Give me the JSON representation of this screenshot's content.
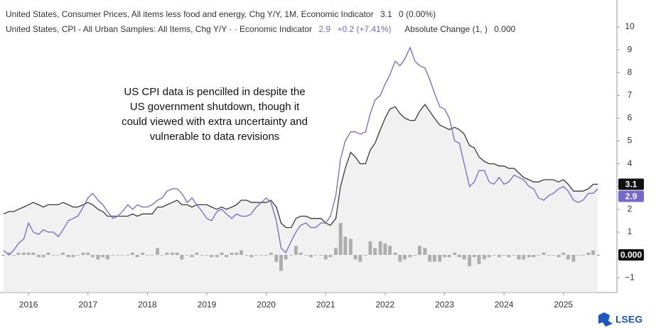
{
  "chart_data": {
    "type": "line",
    "annotation": [
      "US CPI data is pencilled in despite the",
      "US government shutdown, though it",
      "could viewed with extra uncertainty and",
      "vulnerable to data revisions"
    ],
    "logo": "LSEG",
    "x": [
      2015.58,
      2015.67,
      2015.75,
      2015.83,
      2015.92,
      2016,
      2016.08,
      2016.17,
      2016.25,
      2016.33,
      2016.42,
      2016.5,
      2016.58,
      2016.67,
      2016.75,
      2016.83,
      2016.92,
      2017,
      2017.08,
      2017.17,
      2017.25,
      2017.33,
      2017.42,
      2017.5,
      2017.58,
      2017.67,
      2017.75,
      2017.83,
      2017.92,
      2018,
      2018.08,
      2018.17,
      2018.25,
      2018.33,
      2018.42,
      2018.5,
      2018.58,
      2018.67,
      2018.75,
      2018.83,
      2018.92,
      2019,
      2019.08,
      2019.17,
      2019.25,
      2019.33,
      2019.42,
      2019.5,
      2019.58,
      2019.67,
      2019.75,
      2019.83,
      2019.92,
      2020,
      2020.08,
      2020.17,
      2020.25,
      2020.33,
      2020.42,
      2020.5,
      2020.58,
      2020.67,
      2020.75,
      2020.83,
      2020.92,
      2021,
      2021.08,
      2021.17,
      2021.25,
      2021.33,
      2021.42,
      2021.5,
      2021.58,
      2021.67,
      2021.75,
      2021.83,
      2021.92,
      2022,
      2022.08,
      2022.17,
      2022.25,
      2022.33,
      2022.42,
      2022.5,
      2022.58,
      2022.67,
      2022.75,
      2022.83,
      2022.92,
      2023,
      2023.08,
      2023.17,
      2023.25,
      2023.33,
      2023.42,
      2023.5,
      2023.58,
      2023.67,
      2023.75,
      2023.83,
      2023.92,
      2024,
      2024.08,
      2024.17,
      2024.25,
      2024.33,
      2024.42,
      2024.5,
      2024.58,
      2024.67,
      2024.75,
      2024.83,
      2024.92,
      2025,
      2025.08,
      2025.17,
      2025.25,
      2025.33,
      2025.42,
      2025.5,
      2025.58
    ],
    "series": [
      {
        "name": "United States, Consumer Prices, All items less food and energy, Chg Y/Y, 1M, Economic Indicator",
        "type": "line",
        "color": "#3a3a3a",
        "area": true,
        "last_label": "3.1",
        "change_label": "0 (0.00%)",
        "values": [
          1.8,
          1.9,
          1.9,
          2.0,
          2.1,
          2.2,
          2.3,
          2.2,
          2.1,
          2.2,
          2.2,
          2.2,
          2.3,
          2.2,
          2.1,
          2.1,
          2.2,
          2.3,
          2.2,
          2.0,
          1.9,
          1.7,
          1.7,
          1.7,
          1.7,
          1.7,
          1.8,
          1.7,
          1.8,
          1.8,
          1.8,
          2.1,
          2.1,
          2.2,
          2.3,
          2.4,
          2.2,
          2.2,
          2.1,
          2.2,
          2.2,
          2.2,
          2.1,
          2.0,
          2.1,
          2.0,
          2.1,
          2.2,
          2.4,
          2.4,
          2.3,
          2.3,
          2.3,
          2.3,
          2.4,
          2.1,
          1.4,
          1.2,
          1.2,
          1.6,
          1.7,
          1.7,
          1.6,
          1.6,
          1.6,
          1.4,
          1.3,
          1.6,
          3.0,
          3.8,
          4.5,
          4.3,
          4.0,
          4.0,
          4.6,
          4.9,
          5.5,
          6.0,
          6.4,
          6.5,
          6.2,
          6.0,
          5.9,
          5.9,
          6.3,
          6.6,
          6.3,
          6.0,
          5.7,
          5.6,
          5.5,
          5.6,
          5.5,
          5.3,
          4.8,
          4.7,
          4.3,
          4.1,
          4.0,
          4.0,
          3.9,
          3.9,
          3.8,
          3.8,
          3.6,
          3.4,
          3.3,
          3.2,
          3.2,
          3.3,
          3.3,
          3.3,
          3.2,
          3.3,
          3.1,
          2.8,
          2.8,
          2.8,
          2.9,
          3.1,
          3.1
        ]
      },
      {
        "name": "United States, CPI - All Urban Samples: All Items, Chg Y/Y · · Economic Indicator",
        "type": "line",
        "color": "#7468cc",
        "last_label": "2.9",
        "change_label": "+0.2 (+7.41%)",
        "values": [
          0.2,
          0.0,
          0.2,
          0.5,
          0.7,
          1.4,
          1.0,
          0.9,
          1.1,
          1.0,
          1.0,
          0.8,
          1.1,
          1.5,
          1.6,
          1.7,
          2.1,
          2.5,
          2.7,
          2.4,
          2.2,
          1.9,
          1.6,
          1.7,
          1.9,
          2.2,
          2.0,
          2.2,
          2.1,
          2.1,
          2.2,
          2.4,
          2.5,
          2.8,
          2.9,
          2.9,
          2.7,
          2.3,
          2.5,
          2.2,
          1.9,
          1.6,
          1.5,
          1.9,
          2.0,
          1.8,
          1.6,
          1.8,
          1.7,
          1.7,
          1.8,
          2.1,
          2.3,
          2.5,
          2.3,
          1.5,
          0.3,
          0.1,
          0.6,
          1.0,
          1.3,
          1.4,
          1.2,
          1.2,
          1.4,
          1.4,
          1.7,
          2.6,
          4.2,
          5.0,
          5.4,
          5.4,
          5.3,
          5.4,
          6.2,
          6.8,
          7.0,
          7.5,
          7.9,
          8.5,
          8.3,
          8.6,
          9.1,
          8.5,
          8.3,
          8.2,
          7.7,
          7.1,
          6.5,
          6.4,
          6.0,
          5.0,
          4.9,
          4.0,
          3.0,
          3.2,
          3.7,
          3.7,
          3.2,
          3.1,
          3.4,
          3.1,
          3.2,
          3.5,
          3.4,
          3.3,
          3.0,
          2.9,
          2.5,
          2.4,
          2.6,
          2.7,
          2.9,
          3.0,
          2.8,
          2.4,
          2.3,
          2.4,
          2.7,
          2.7,
          2.9
        ]
      },
      {
        "name": "Absolute Change (1, )",
        "type": "bar",
        "color": "#555555",
        "last_label": "0.000",
        "values": [
          0,
          0.1,
          0,
          0.1,
          0.1,
          0.1,
          0.1,
          -0.1,
          -0.1,
          0.1,
          0,
          0,
          0.1,
          -0.1,
          -0.1,
          0,
          0.1,
          0.1,
          -0.1,
          -0.2,
          -0.1,
          -0.2,
          0,
          0,
          0,
          0,
          0.1,
          -0.1,
          0.1,
          0,
          0,
          0.3,
          0,
          0.1,
          0.1,
          0.1,
          -0.2,
          0,
          -0.1,
          0.1,
          0,
          0,
          -0.1,
          -0.1,
          0.1,
          -0.1,
          0.1,
          0.1,
          0.2,
          0,
          -0.1,
          0,
          0,
          0,
          0.1,
          -0.3,
          -0.7,
          -0.2,
          0,
          0.4,
          0.1,
          0,
          -0.1,
          0,
          0,
          -0.2,
          -0.1,
          0.3,
          1.4,
          0.8,
          0.7,
          -0.2,
          -0.3,
          0,
          0.6,
          0.3,
          0.6,
          0.5,
          0.4,
          0.1,
          -0.3,
          -0.2,
          -0.1,
          0,
          0.4,
          0.3,
          -0.3,
          -0.3,
          -0.3,
          -0.1,
          -0.1,
          0.1,
          -0.1,
          -0.2,
          -0.5,
          -0.1,
          -0.4,
          -0.2,
          -0.1,
          0,
          -0.1,
          0,
          -0.1,
          0,
          -0.2,
          -0.2,
          -0.1,
          -0.1,
          0,
          0.1,
          0,
          0,
          -0.1,
          0.1,
          -0.2,
          -0.3,
          0,
          0,
          0.1,
          0.2,
          0
        ]
      }
    ],
    "xlim": [
      2015.58,
      2025.9
    ],
    "xticks": [
      2016,
      2017,
      2018,
      2019,
      2020,
      2021,
      2022,
      2023,
      2024,
      2025
    ],
    "ylim": [
      -1.65,
      11.06
    ],
    "yticks": [
      {
        "value": -1,
        "label": "−1"
      },
      1,
      2,
      3,
      4,
      5,
      6,
      7,
      8,
      9,
      10
    ],
    "grid": false
  }
}
